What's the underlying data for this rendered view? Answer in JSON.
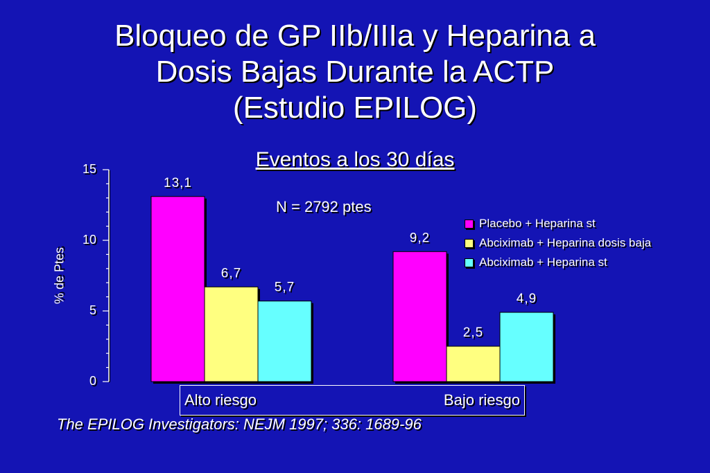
{
  "slide": {
    "title_lines": [
      "Bloqueo de GP IIb/IIIa y Heparina a",
      "Dosis Bajas Durante la ACTP",
      "(Estudio EPILOG)"
    ],
    "source": "The EPILOG Investigators: NEJM 1997; 336: 1689-96"
  },
  "chart_data": {
    "type": "bar",
    "subtitle": "Eventos a los 30 días",
    "annotation": "N = 2792 ptes",
    "ylabel": "% de Ptes",
    "xlabel": "",
    "ylim": [
      0,
      15
    ],
    "yticks": [
      "0",
      "5",
      "10",
      "15"
    ],
    "categories": [
      "Alto riesgo",
      "Bajo riesgo"
    ],
    "legend_position": "right",
    "series": [
      {
        "name": "Placebo + Heparina st",
        "color": "#ff00ff",
        "values": [
          13.1,
          9.2
        ],
        "labels": [
          "13,1",
          "9,2"
        ]
      },
      {
        "name": "Abciximab + Heparina dosis baja",
        "color": "#ffff80",
        "values": [
          6.7,
          2.5
        ],
        "labels": [
          "6,7",
          "2,5"
        ]
      },
      {
        "name": "Abciximab + Heparina st",
        "color": "#66ffff",
        "values": [
          5.7,
          4.9
        ],
        "labels": [
          "5,7",
          "4,9"
        ]
      }
    ]
  }
}
